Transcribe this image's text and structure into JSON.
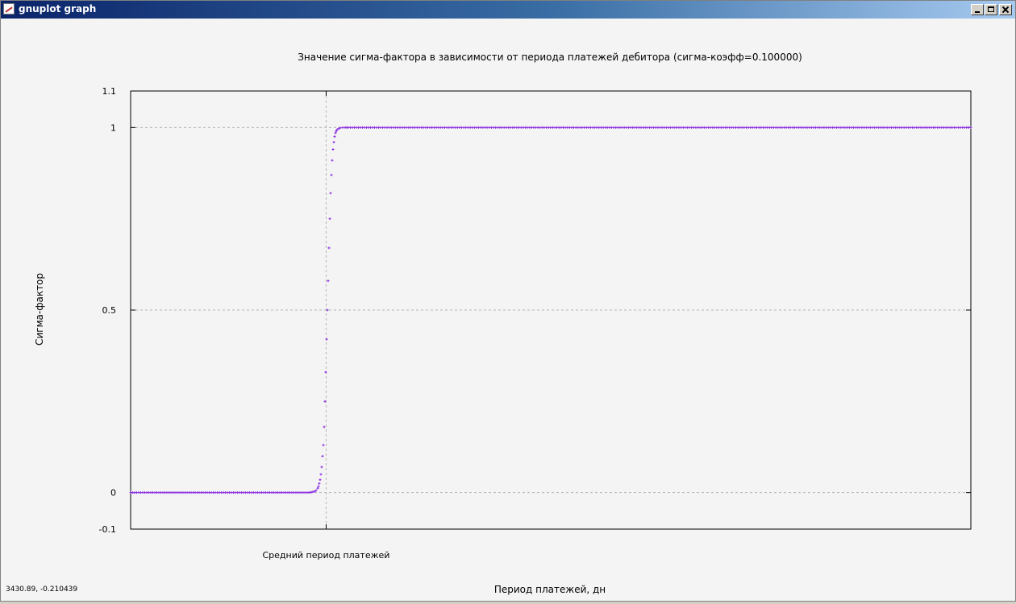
{
  "window": {
    "title": "gnuplot graph",
    "icon": "gnuplot-graph-icon",
    "controls": [
      "minimize-icon",
      "maximize-icon",
      "close-icon"
    ]
  },
  "status": {
    "coordinates": "3430.89, -0.210439"
  },
  "colors": {
    "series": "#8a2be2",
    "grid": "#b4b4b4",
    "background": "#f4f4f4"
  },
  "chart_data": {
    "type": "scatter",
    "title": "Значение сигма-фактора в зависимости от периода платежей дебитора (сигма-коэфф=0.100000)",
    "xlabel": "Период платежей, дн",
    "ylabel": "Сигма-фактор",
    "ylim": [
      -0.1,
      1.1
    ],
    "y_ticks": [
      -0.1,
      0,
      0.5,
      1,
      1.1
    ],
    "y_tick_labels": [
      "-0.1",
      "0",
      "0.5",
      "1",
      "1.1"
    ],
    "y_grid": [
      0,
      0.5,
      1
    ],
    "x_ticks": [
      {
        "label": "Средний период платежей",
        "fraction": 0.2327
      }
    ],
    "grid": true,
    "series": [
      {
        "marker": "plus",
        "x_fraction": [
          0.0,
          0.0096,
          0.0192,
          0.0288,
          0.0384,
          0.048,
          0.0576,
          0.0672,
          0.0768,
          0.0864,
          0.096,
          0.1056,
          0.1152,
          0.1248,
          0.1344,
          0.144,
          0.1536,
          0.1632,
          0.1728,
          0.1824,
          0.1919,
          0.2015,
          0.2111,
          0.2149,
          0.2188,
          0.2207,
          0.2226,
          0.2236,
          0.2245,
          0.2255,
          0.2265,
          0.2274,
          0.2284,
          0.2294,
          0.2303,
          0.2313,
          0.2322,
          0.2332,
          0.2342,
          0.2351,
          0.2361,
          0.2371,
          0.238,
          0.239,
          0.2399,
          0.2409,
          0.2419,
          0.2428,
          0.2438,
          0.2447,
          0.2457,
          0.2476,
          0.2495,
          0.2524,
          0.2553,
          0.2591,
          0.2639,
          0.2687,
          0.2783,
          0.2975,
          0.3359,
          0.3839,
          0.4319,
          0.4798,
          0.5374,
          0.595,
          0.6526,
          0.7102,
          0.7678,
          0.8253,
          0.8829,
          0.9405,
          1.0
        ],
        "y": [
          0.0,
          0.0,
          0.0,
          0.0,
          0.0,
          0.0,
          0.0,
          0.0,
          0.0,
          0.0,
          0.0,
          0.0,
          0.0,
          0.0,
          0.0,
          0.0,
          0.0,
          0.0,
          0.0,
          0.0,
          0.0,
          0.0,
          0.0,
          0.001,
          0.003,
          0.006,
          0.012,
          0.017,
          0.025,
          0.035,
          0.05,
          0.07,
          0.1,
          0.13,
          0.18,
          0.25,
          0.33,
          0.42,
          0.5,
          0.58,
          0.67,
          0.75,
          0.82,
          0.87,
          0.91,
          0.94,
          0.96,
          0.975,
          0.985,
          0.99,
          0.994,
          0.997,
          0.999,
          1.0,
          1.0,
          1.0,
          1.0,
          1.0,
          1.0,
          1.0,
          1.0,
          1.0,
          1.0,
          1.0,
          1.0,
          1.0,
          1.0,
          1.0,
          1.0,
          1.0,
          1.0,
          1.0,
          1.0
        ]
      }
    ]
  }
}
